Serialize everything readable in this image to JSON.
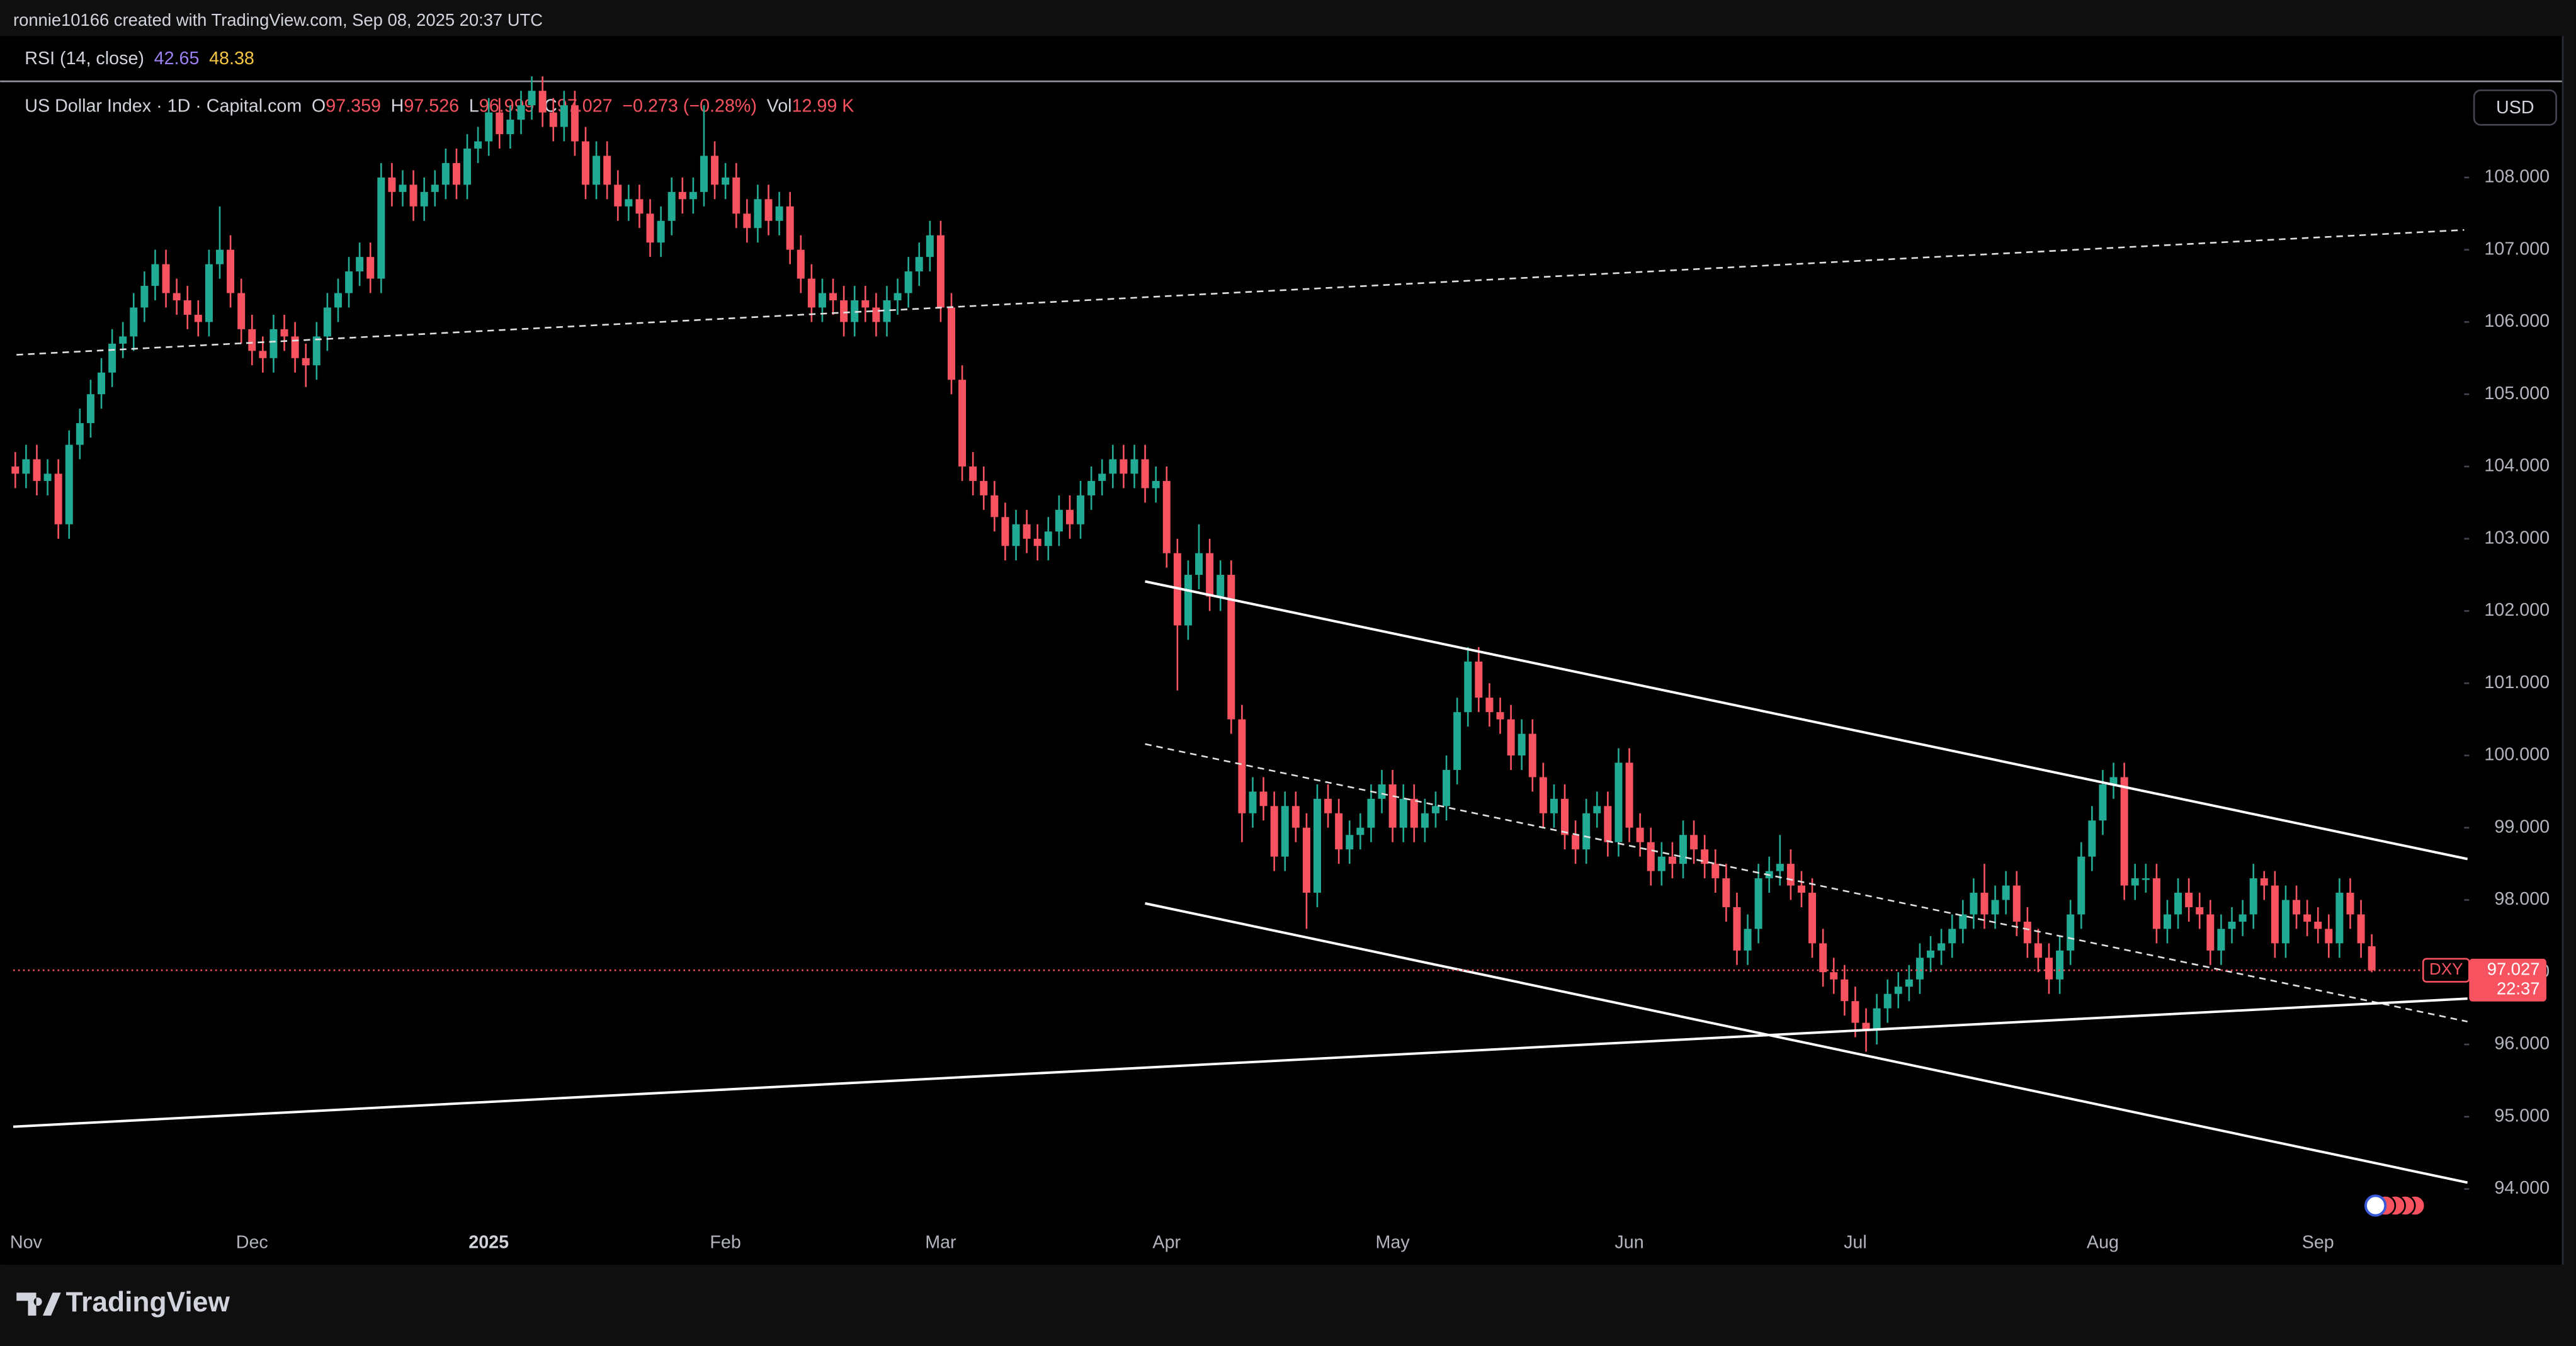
{
  "header": {
    "credit": "ronnie10166 created with TradingView.com, Sep 08, 2025 20:37 UTC"
  },
  "rsi": {
    "label": "RSI (14, close)",
    "value_a": "42.65",
    "value_b": "48.38"
  },
  "legend": {
    "open_label": "O",
    "open": "97.359",
    "high_label": "H",
    "high": "97.526",
    "low_label": "L",
    "low": "96.999",
    "close_label": "C",
    "close": "97.027",
    "change": "−0.273 (−0.28%)",
    "volume_label": "Vol",
    "volume": "12.99 K"
  },
  "currency": "USD",
  "symbol_tag": "DXY",
  "price_tag": "97.027",
  "countdown": "22:37",
  "brand": "TradingView",
  "chart_data": {
    "type": "candlestick",
    "title": "US Dollar Index · 1D · Capital.com",
    "up_color": "#22ab94",
    "down_color": "#f7525f",
    "grid": false,
    "ylim": [
      93.52,
      109.32
    ],
    "yticks": [
      {
        "value": 94,
        "label": "94.000"
      },
      {
        "value": 95,
        "label": "95.000"
      },
      {
        "value": 96,
        "label": "96.000"
      },
      {
        "value": 97,
        "label": "97.000"
      },
      {
        "value": 98,
        "label": "98.000"
      },
      {
        "value": 99,
        "label": "99.000"
      },
      {
        "value": 100,
        "label": "100.000"
      },
      {
        "value": 101,
        "label": "101.000"
      },
      {
        "value": 102,
        "label": "102.000"
      },
      {
        "value": 103,
        "label": "103.000"
      },
      {
        "value": 104,
        "label": "104.000"
      },
      {
        "value": 105,
        "label": "105.000"
      },
      {
        "value": 106,
        "label": "106.000"
      },
      {
        "value": 107,
        "label": "107.000"
      },
      {
        "value": 108,
        "label": "108.000"
      }
    ],
    "categories": [
      null,
      "Nov",
      null,
      null,
      null,
      null,
      null,
      null,
      null,
      null,
      null,
      null,
      null,
      null,
      null,
      null,
      null,
      null,
      null,
      null,
      null,
      null,
      "Dec",
      null,
      null,
      null,
      null,
      null,
      null,
      null,
      null,
      null,
      null,
      null,
      null,
      null,
      null,
      null,
      null,
      null,
      null,
      null,
      null,
      null,
      "2025",
      null,
      null,
      null,
      null,
      null,
      null,
      null,
      null,
      null,
      null,
      null,
      null,
      null,
      null,
      null,
      null,
      null,
      null,
      null,
      null,
      null,
      "Feb",
      null,
      null,
      null,
      null,
      null,
      null,
      null,
      null,
      null,
      null,
      null,
      null,
      null,
      null,
      null,
      null,
      null,
      null,
      null,
      "Mar",
      null,
      null,
      null,
      null,
      null,
      null,
      null,
      null,
      null,
      null,
      null,
      null,
      null,
      null,
      null,
      null,
      null,
      null,
      null,
      null,
      "Apr",
      null,
      null,
      null,
      null,
      null,
      null,
      null,
      null,
      null,
      null,
      null,
      null,
      null,
      null,
      null,
      null,
      null,
      null,
      null,
      null,
      "May",
      null,
      null,
      null,
      null,
      null,
      null,
      null,
      null,
      null,
      null,
      null,
      null,
      null,
      null,
      null,
      null,
      null,
      null,
      null,
      null,
      null,
      "Jun",
      null,
      null,
      null,
      null,
      null,
      null,
      null,
      null,
      null,
      null,
      null,
      null,
      null,
      null,
      null,
      null,
      null,
      null,
      null,
      null,
      "Jul",
      null,
      null,
      null,
      null,
      null,
      null,
      null,
      null,
      null,
      null,
      null,
      null,
      null,
      null,
      null,
      null,
      null,
      null,
      null,
      null,
      null,
      null,
      "Aug",
      null,
      null,
      null,
      null,
      null,
      null,
      null,
      null,
      null,
      null,
      null,
      null,
      null,
      null,
      null,
      null,
      null,
      null,
      null,
      "Sep",
      null,
      null,
      null,
      null,
      null
    ],
    "open": [
      104.0,
      103.9,
      104.1,
      103.8,
      103.9,
      103.2,
      104.3,
      104.6,
      105.0,
      105.3,
      105.7,
      105.8,
      106.2,
      106.5,
      106.8,
      106.4,
      106.3,
      106.1,
      106.0,
      106.8,
      107.0,
      106.4,
      105.9,
      105.6,
      105.5,
      105.9,
      105.8,
      105.5,
      105.4,
      105.8,
      106.2,
      106.4,
      106.7,
      106.9,
      106.6,
      108.0,
      107.8,
      107.9,
      107.6,
      107.8,
      107.9,
      108.2,
      107.9,
      108.4,
      108.5,
      108.9,
      108.6,
      108.8,
      109.0,
      109.2,
      108.9,
      108.7,
      109.0,
      108.5,
      107.9,
      108.3,
      107.9,
      107.6,
      107.7,
      107.5,
      107.1,
      107.4,
      107.8,
      107.7,
      107.8,
      108.3,
      107.9,
      108.0,
      107.5,
      107.3,
      107.7,
      107.4,
      107.6,
      107.0,
      106.6,
      106.2,
      106.4,
      106.3,
      106.0,
      106.3,
      106.2,
      106.0,
      106.3,
      106.4,
      106.7,
      106.9,
      107.2,
      106.2,
      105.2,
      104.0,
      103.8,
      103.6,
      103.3,
      102.9,
      103.2,
      103.0,
      102.9,
      103.1,
      103.4,
      103.2,
      103.6,
      103.8,
      103.9,
      104.1,
      103.9,
      104.1,
      103.7,
      103.8,
      102.8,
      101.8,
      102.5,
      102.8,
      102.2,
      102.5,
      100.5,
      99.2,
      99.5,
      99.3,
      98.6,
      99.3,
      99.0,
      98.1,
      99.4,
      99.2,
      98.7,
      98.9,
      99.0,
      99.4,
      99.6,
      99.0,
      99.4,
      99.0,
      99.2,
      99.3,
      99.8,
      100.6,
      101.3,
      100.8,
      100.6,
      100.5,
      100.0,
      100.3,
      99.7,
      99.2,
      99.4,
      98.9,
      98.7,
      99.2,
      99.3,
      98.8,
      99.9,
      99.0,
      98.8,
      98.4,
      98.6,
      98.5,
      98.9,
      98.7,
      98.5,
      98.3,
      97.9,
      97.3,
      97.6,
      98.3,
      98.4,
      98.5,
      98.2,
      98.1,
      97.4,
      97.0,
      96.9,
      96.6,
      96.3,
      96.2,
      96.5,
      96.7,
      96.8,
      96.9,
      97.2,
      97.3,
      97.4,
      97.6,
      97.8,
      98.1,
      97.8,
      98.0,
      98.2,
      97.7,
      97.4,
      97.2,
      96.9,
      97.3,
      97.8,
      98.6,
      99.1,
      99.6,
      99.7,
      98.2,
      98.3,
      98.3,
      97.6,
      97.8,
      98.1,
      97.9,
      97.8,
      97.3,
      97.6,
      97.7,
      97.8,
      98.3,
      98.2,
      97.4,
      98.0,
      97.8,
      97.7,
      97.6,
      97.4,
      98.1,
      97.8,
      97.359
    ],
    "high": [
      104.2,
      104.3,
      104.3,
      104.1,
      104.1,
      104.5,
      104.8,
      105.2,
      105.5,
      105.9,
      106.0,
      106.4,
      106.7,
      107.0,
      107.0,
      106.6,
      106.5,
      106.3,
      107.0,
      107.6,
      107.2,
      106.6,
      106.1,
      105.8,
      106.1,
      106.1,
      106.0,
      105.7,
      106.0,
      106.4,
      106.6,
      106.9,
      107.1,
      107.1,
      108.2,
      108.2,
      108.1,
      108.1,
      108.0,
      108.1,
      108.4,
      108.4,
      108.6,
      108.7,
      109.1,
      109.1,
      109.0,
      109.2,
      109.4,
      109.4,
      109.1,
      109.2,
      109.2,
      108.7,
      108.5,
      108.5,
      108.1,
      107.9,
      107.9,
      107.7,
      107.6,
      108.0,
      108.0,
      108.0,
      109.0,
      108.5,
      108.2,
      108.2,
      107.7,
      107.9,
      107.9,
      107.8,
      107.8,
      107.2,
      106.8,
      106.6,
      106.6,
      106.5,
      106.5,
      106.5,
      106.4,
      106.5,
      106.6,
      106.9,
      107.1,
      107.4,
      107.4,
      106.4,
      105.4,
      104.2,
      104.0,
      103.8,
      103.5,
      103.4,
      103.4,
      103.2,
      103.3,
      103.6,
      103.6,
      103.8,
      104.0,
      104.1,
      104.3,
      104.3,
      104.3,
      104.3,
      104.0,
      104.0,
      103.0,
      102.7,
      103.2,
      103.0,
      102.7,
      102.7,
      100.7,
      99.7,
      99.7,
      99.5,
      99.5,
      99.5,
      99.2,
      99.6,
      99.6,
      99.4,
      99.1,
      99.2,
      99.6,
      99.8,
      99.8,
      99.6,
      99.6,
      99.4,
      99.5,
      100.0,
      100.8,
      101.5,
      101.5,
      101.0,
      100.8,
      100.7,
      100.5,
      100.5,
      99.9,
      99.6,
      99.6,
      99.1,
      99.4,
      99.5,
      99.5,
      100.1,
      100.1,
      99.2,
      99.0,
      98.8,
      98.8,
      99.1,
      99.1,
      98.9,
      98.7,
      98.5,
      98.1,
      97.8,
      98.5,
      98.6,
      98.9,
      98.7,
      98.4,
      98.3,
      97.6,
      97.2,
      97.1,
      96.8,
      96.5,
      96.7,
      96.9,
      97.0,
      97.1,
      97.4,
      97.5,
      97.6,
      97.8,
      98.0,
      98.3,
      98.5,
      98.2,
      98.4,
      98.4,
      97.9,
      97.6,
      97.4,
      97.5,
      98.0,
      98.8,
      99.3,
      99.8,
      99.9,
      99.9,
      98.5,
      98.5,
      98.5,
      98.0,
      98.3,
      98.3,
      98.1,
      98.0,
      97.8,
      97.9,
      98.0,
      98.5,
      98.4,
      98.4,
      98.2,
      98.2,
      98.0,
      97.9,
      97.8,
      98.3,
      98.3,
      98.0,
      97.526
    ],
    "low": [
      103.7,
      103.7,
      103.6,
      103.6,
      103.0,
      103.0,
      104.1,
      104.4,
      104.8,
      105.1,
      105.5,
      105.6,
      106.0,
      106.3,
      106.2,
      106.1,
      105.9,
      105.8,
      105.8,
      106.6,
      106.2,
      105.7,
      105.4,
      105.3,
      105.3,
      105.6,
      105.3,
      105.1,
      105.2,
      105.6,
      106.0,
      106.2,
      106.5,
      106.4,
      106.4,
      107.6,
      107.6,
      107.4,
      107.4,
      107.6,
      107.7,
      107.7,
      107.7,
      108.2,
      108.3,
      108.4,
      108.4,
      108.6,
      108.8,
      108.7,
      108.5,
      108.5,
      108.3,
      107.7,
      107.7,
      107.7,
      107.4,
      107.4,
      107.3,
      106.9,
      106.9,
      107.2,
      107.5,
      107.5,
      107.6,
      107.7,
      107.7,
      107.3,
      107.1,
      107.1,
      107.2,
      107.2,
      106.8,
      106.4,
      106.0,
      106.0,
      106.1,
      105.8,
      105.8,
      106.0,
      105.8,
      105.8,
      106.1,
      106.2,
      106.5,
      106.7,
      106.0,
      105.0,
      103.8,
      103.6,
      103.4,
      103.1,
      102.7,
      102.7,
      102.8,
      102.7,
      102.7,
      102.9,
      103.0,
      103.0,
      103.4,
      103.6,
      103.7,
      103.7,
      103.7,
      103.5,
      103.5,
      102.6,
      100.9,
      101.6,
      102.3,
      102.0,
      102.0,
      100.3,
      98.8,
      99.0,
      99.1,
      98.4,
      98.4,
      98.8,
      97.6,
      97.9,
      99.0,
      98.5,
      98.5,
      98.7,
      98.8,
      99.2,
      98.8,
      98.8,
      98.8,
      98.8,
      99.0,
      99.1,
      99.6,
      100.4,
      100.6,
      100.4,
      100.3,
      99.8,
      99.8,
      99.5,
      99.0,
      99.0,
      98.7,
      98.5,
      98.5,
      99.0,
      98.6,
      98.6,
      98.8,
      98.6,
      98.2,
      98.2,
      98.3,
      98.3,
      98.5,
      98.3,
      98.1,
      97.7,
      97.1,
      97.1,
      97.4,
      98.1,
      98.2,
      98.0,
      97.9,
      97.2,
      96.8,
      96.7,
      96.4,
      96.1,
      95.9,
      96.0,
      96.3,
      96.5,
      96.6,
      96.7,
      97.0,
      97.1,
      97.2,
      97.4,
      97.6,
      97.6,
      97.6,
      97.8,
      97.5,
      97.2,
      97.0,
      96.7,
      96.7,
      97.1,
      97.6,
      98.4,
      98.9,
      99.4,
      98.0,
      98.0,
      98.1,
      97.4,
      97.4,
      97.6,
      97.7,
      97.6,
      97.1,
      97.1,
      97.4,
      97.5,
      97.6,
      98.0,
      97.2,
      97.2,
      97.6,
      97.5,
      97.4,
      97.2,
      97.2,
      97.6,
      97.2,
      96.999
    ],
    "close": [
      103.9,
      104.1,
      103.8,
      103.9,
      103.2,
      104.3,
      104.6,
      105.0,
      105.3,
      105.7,
      105.8,
      106.2,
      106.5,
      106.8,
      106.4,
      106.3,
      106.1,
      106.0,
      106.8,
      107.0,
      106.4,
      105.9,
      105.6,
      105.5,
      105.9,
      105.8,
      105.5,
      105.4,
      105.8,
      106.2,
      106.4,
      106.7,
      106.9,
      106.6,
      108.0,
      107.8,
      107.9,
      107.6,
      107.8,
      107.9,
      108.2,
      107.9,
      108.4,
      108.5,
      108.9,
      108.6,
      108.8,
      109.0,
      109.2,
      108.9,
      108.7,
      109.0,
      108.5,
      107.9,
      108.3,
      107.9,
      107.6,
      107.7,
      107.5,
      107.1,
      107.4,
      107.8,
      107.7,
      107.8,
      108.3,
      107.9,
      108.0,
      107.5,
      107.3,
      107.7,
      107.4,
      107.6,
      107.0,
      106.6,
      106.2,
      106.4,
      106.3,
      106.0,
      106.3,
      106.2,
      106.0,
      106.3,
      106.4,
      106.7,
      106.9,
      107.2,
      106.2,
      105.2,
      104.0,
      103.8,
      103.6,
      103.3,
      102.9,
      103.2,
      103.0,
      102.9,
      103.1,
      103.4,
      103.2,
      103.6,
      103.8,
      103.9,
      104.1,
      103.9,
      104.1,
      103.7,
      103.8,
      102.8,
      101.8,
      102.5,
      102.8,
      102.2,
      102.5,
      100.5,
      99.2,
      99.5,
      99.3,
      98.6,
      99.3,
      99.0,
      98.1,
      99.4,
      99.2,
      98.7,
      98.9,
      99.0,
      99.4,
      99.6,
      99.0,
      99.4,
      99.0,
      99.2,
      99.3,
      99.8,
      100.6,
      101.3,
      100.8,
      100.6,
      100.5,
      100.0,
      100.3,
      99.7,
      99.2,
      99.4,
      98.9,
      98.7,
      99.2,
      99.3,
      98.8,
      99.9,
      99.0,
      98.8,
      98.4,
      98.6,
      98.5,
      98.9,
      98.7,
      98.5,
      98.3,
      97.9,
      97.3,
      97.6,
      98.3,
      98.4,
      98.5,
      98.2,
      98.1,
      97.4,
      97.0,
      96.9,
      96.6,
      96.3,
      96.2,
      96.5,
      96.7,
      96.8,
      96.9,
      97.2,
      97.3,
      97.4,
      97.6,
      97.8,
      98.1,
      97.8,
      98.0,
      98.2,
      97.7,
      97.4,
      97.2,
      96.9,
      97.3,
      97.8,
      98.6,
      99.1,
      99.6,
      99.7,
      98.2,
      98.3,
      98.3,
      97.6,
      97.8,
      98.1,
      97.9,
      97.8,
      97.3,
      97.6,
      97.7,
      97.8,
      98.3,
      98.2,
      97.4,
      98.0,
      97.8,
      97.7,
      97.6,
      97.4,
      98.1,
      97.8,
      97.4,
      97.027
    ]
  }
}
